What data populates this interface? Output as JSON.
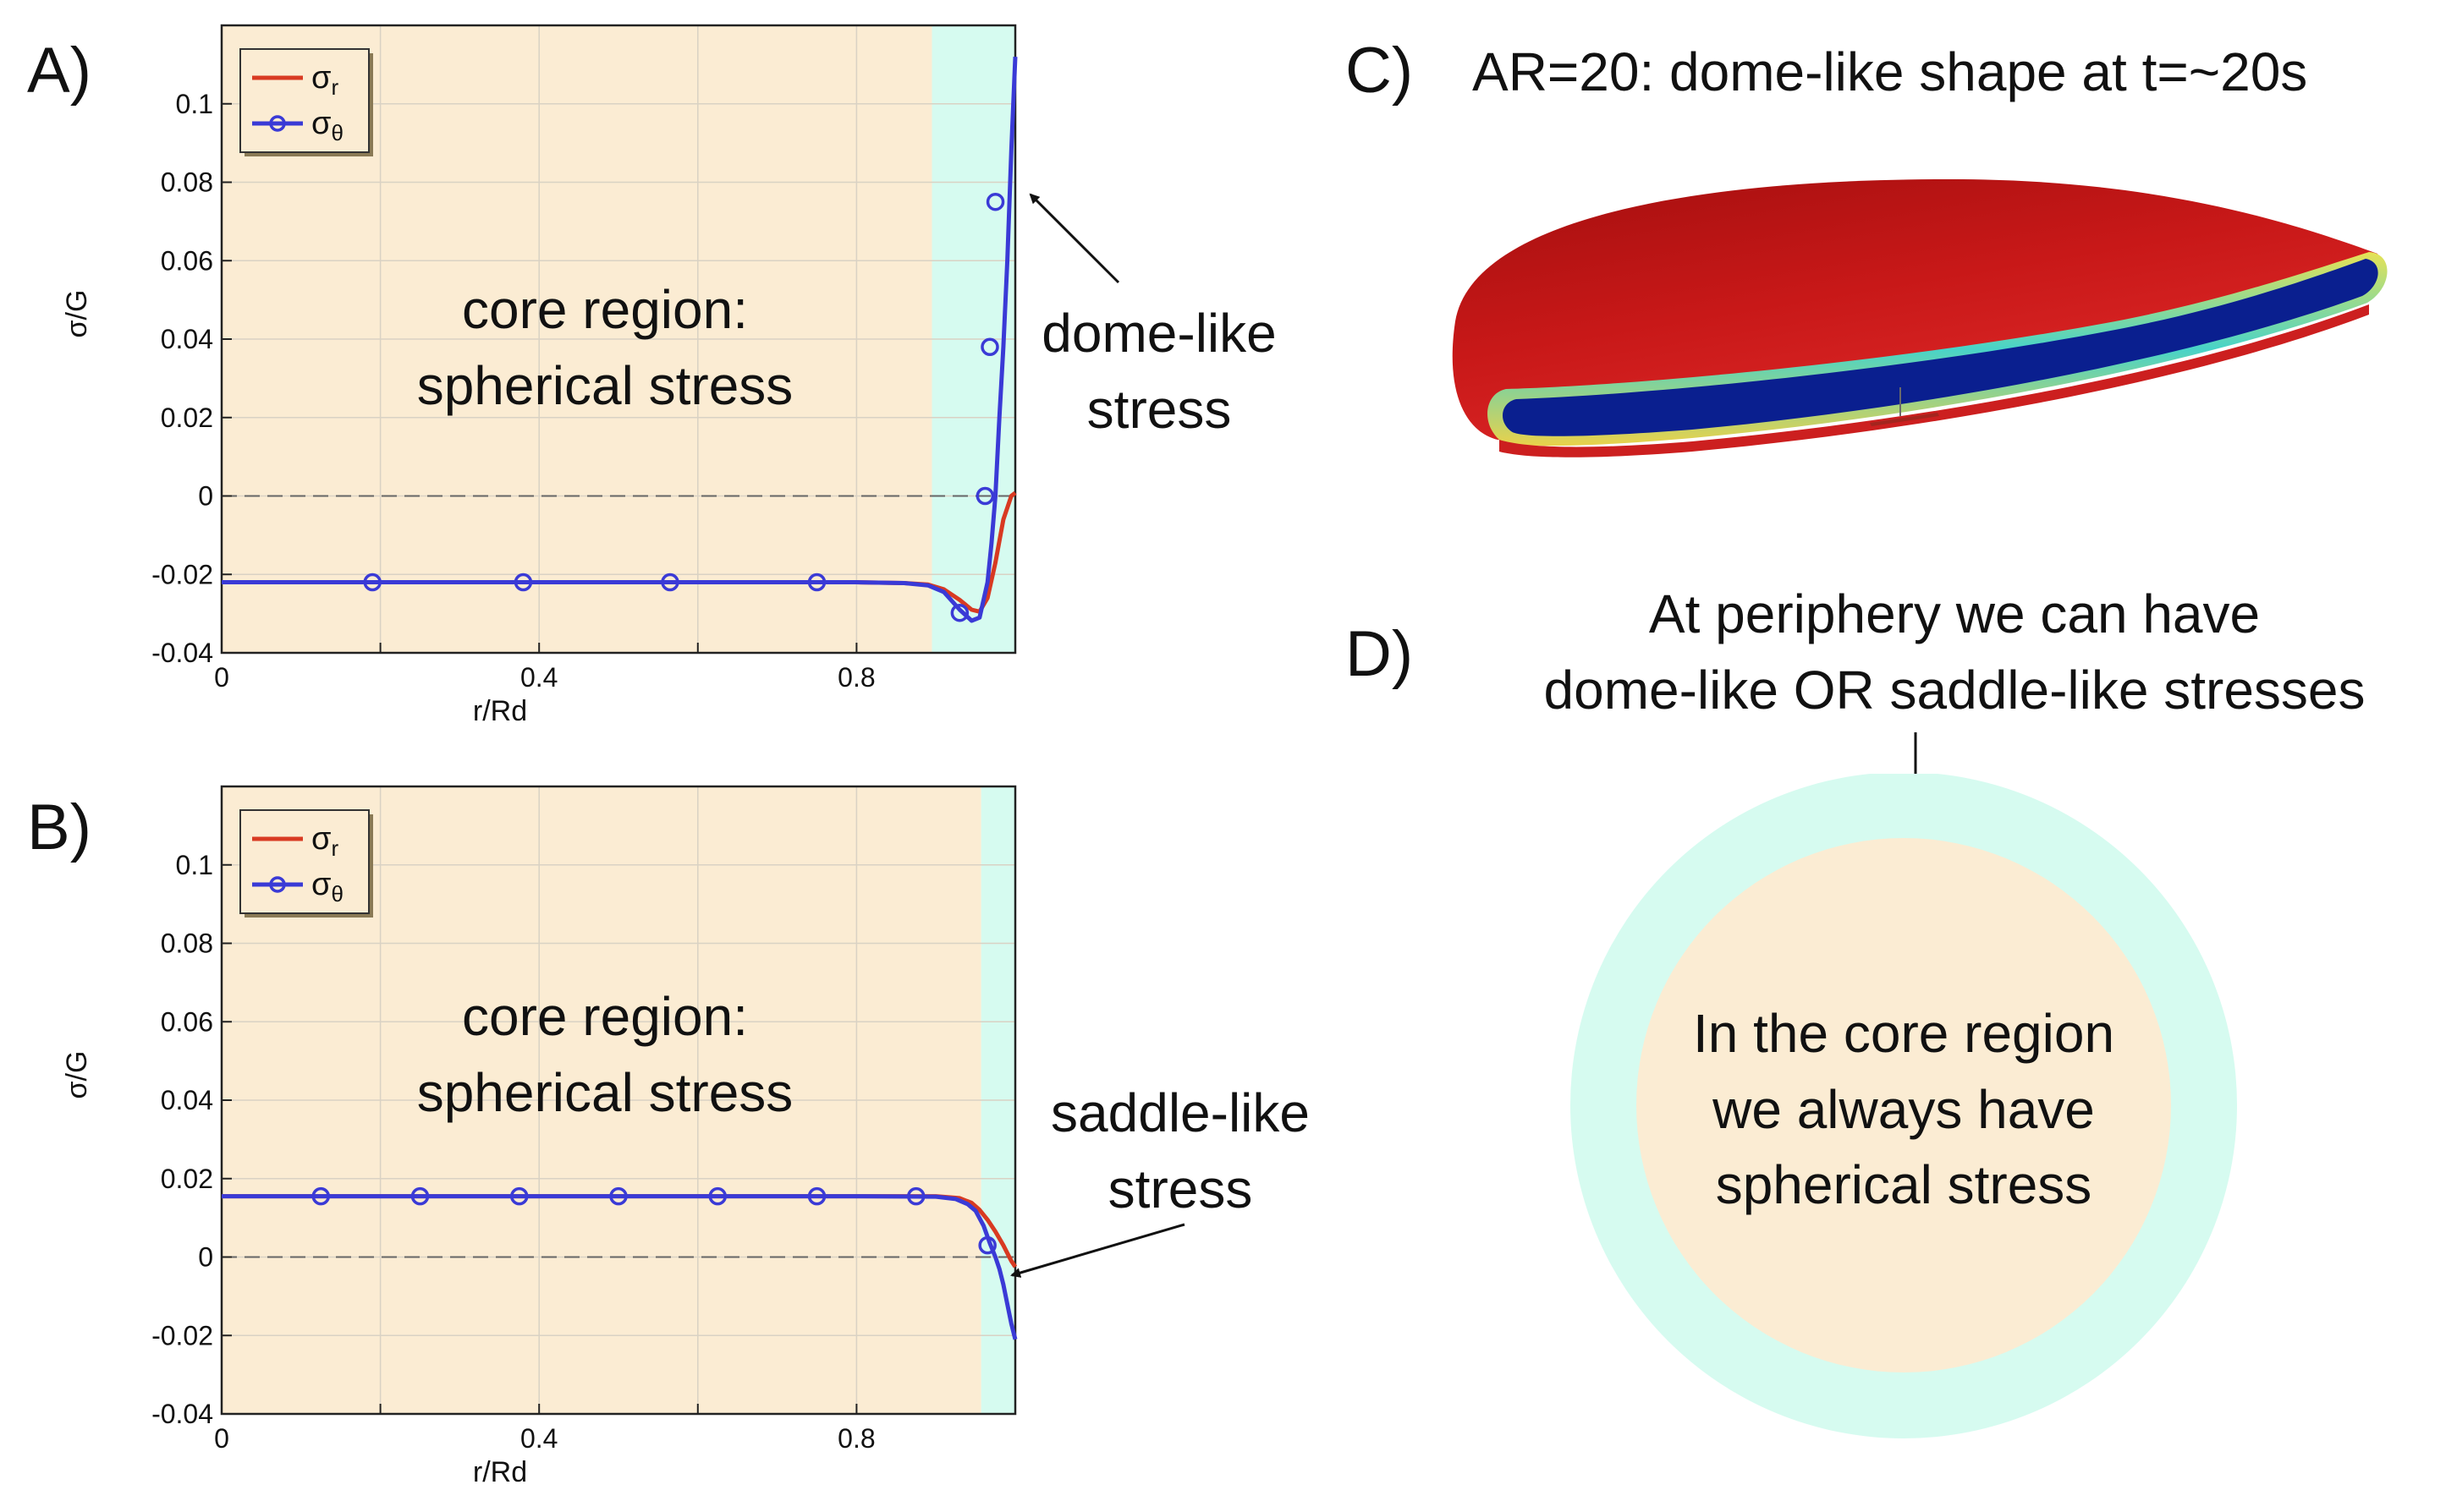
{
  "colors": {
    "core_fill": "#fbecd3",
    "periphery_fill": "#d6fbf0",
    "sigma_r": "#d83a22",
    "sigma_theta": "#3a3ad6",
    "dome_red": "#d42020",
    "dome_blue": "#0a1f8f"
  },
  "panels": {
    "A": {
      "letter": "A)",
      "annotation_line1": "core region:",
      "annotation_line2": "spherical stress",
      "callout_line1": "dome-like",
      "callout_line2": "stress"
    },
    "B": {
      "letter": "B)",
      "annotation_line1": "core region:",
      "annotation_line2": "spherical stress",
      "callout_line1": "saddle-like",
      "callout_line2": "stress"
    },
    "C": {
      "letter": "C)",
      "title": "AR=20: dome-like shape at t=~20s"
    },
    "D": {
      "letter": "D)",
      "caption_line1": "At periphery we can have",
      "caption_line2": "dome-like OR saddle-like stresses",
      "inner_line1": "In the core region",
      "inner_line2": "we always have",
      "inner_line3": "spherical stress"
    }
  },
  "chart_data": [
    {
      "panel": "A",
      "type": "line",
      "xlabel": "r/Rd",
      "ylabel": "σ/G",
      "xlim": [
        0,
        1
      ],
      "ylim": [
        -0.04,
        0.12
      ],
      "xticks": [
        0,
        0.2,
        0.4,
        0.6,
        0.8,
        1.0
      ],
      "xtick_labels": [
        "0",
        "",
        "0.4",
        "",
        "0.8",
        ""
      ],
      "yticks": [
        -0.04,
        -0.02,
        0,
        0.02,
        0.04,
        0.06,
        0.08,
        0.1
      ],
      "ytick_labels": [
        "-0.04",
        "-0.02",
        "0",
        "0.02",
        "0.04",
        "0.06",
        "0.08",
        "0.1"
      ],
      "grid": true,
      "zero_line": true,
      "legend_position": "top-left",
      "core_region_x": [
        0,
        0.895
      ],
      "periphery_region_x": [
        0.895,
        1.0
      ],
      "series": [
        {
          "name": "σ",
          "subscript": "r",
          "color": "#d83a22",
          "markers": false,
          "x": [
            0,
            0.2,
            0.4,
            0.6,
            0.8,
            0.86,
            0.89,
            0.91,
            0.93,
            0.945,
            0.955,
            0.965,
            0.975,
            0.985,
            0.995,
            1.0
          ],
          "y": [
            -0.022,
            -0.022,
            -0.022,
            -0.022,
            -0.022,
            -0.0222,
            -0.0226,
            -0.0238,
            -0.0265,
            -0.029,
            -0.0295,
            -0.026,
            -0.017,
            -0.006,
            0.0,
            0.0008
          ]
        },
        {
          "name": "σ",
          "subscript": "θ",
          "color": "#3a3ad6",
          "markers": true,
          "x": [
            0,
            0.2,
            0.4,
            0.6,
            0.8,
            0.86,
            0.89,
            0.91,
            0.93,
            0.945,
            0.955,
            0.965,
            0.97,
            0.975,
            0.98,
            0.985,
            0.99,
            0.995,
            1.0
          ],
          "y": [
            -0.022,
            -0.022,
            -0.022,
            -0.022,
            -0.022,
            -0.0222,
            -0.0228,
            -0.0245,
            -0.029,
            -0.0318,
            -0.031,
            -0.022,
            -0.012,
            0.0,
            0.02,
            0.038,
            0.06,
            0.088,
            0.112
          ],
          "marker_x": [
            0.19,
            0.38,
            0.565,
            0.75,
            0.93,
            0.962,
            0.968,
            0.975
          ],
          "marker_y": [
            -0.022,
            -0.022,
            -0.022,
            -0.022,
            -0.0298,
            0.0,
            0.038,
            0.075
          ]
        }
      ]
    },
    {
      "panel": "B",
      "type": "line",
      "xlabel": "r/Rd",
      "ylabel": "σ/G",
      "xlim": [
        0,
        1
      ],
      "ylim": [
        -0.04,
        0.12
      ],
      "xticks": [
        0,
        0.2,
        0.4,
        0.6,
        0.8,
        1.0
      ],
      "xtick_labels": [
        "0",
        "",
        "0.4",
        "",
        "0.8",
        ""
      ],
      "yticks": [
        -0.04,
        -0.02,
        0,
        0.02,
        0.04,
        0.06,
        0.08,
        0.1
      ],
      "ytick_labels": [
        "-0.04",
        "-0.02",
        "0",
        "0.02",
        "0.04",
        "0.06",
        "0.08",
        "0.1"
      ],
      "grid": true,
      "zero_line": true,
      "legend_position": "top-left",
      "core_region_x": [
        0,
        0.957
      ],
      "periphery_region_x": [
        0.957,
        1.0
      ],
      "series": [
        {
          "name": "σ",
          "subscript": "r",
          "color": "#d83a22",
          "markers": false,
          "x": [
            0,
            0.2,
            0.4,
            0.6,
            0.8,
            0.9,
            0.93,
            0.945,
            0.955,
            0.965,
            0.975,
            0.985,
            0.995,
            1.0
          ],
          "y": [
            0.0155,
            0.0155,
            0.0155,
            0.0155,
            0.0155,
            0.0155,
            0.015,
            0.0138,
            0.012,
            0.0095,
            0.0065,
            0.003,
            -0.001,
            -0.0025
          ]
        },
        {
          "name": "σ",
          "subscript": "θ",
          "color": "#3a3ad6",
          "markers": true,
          "x": [
            0,
            0.2,
            0.4,
            0.6,
            0.8,
            0.9,
            0.925,
            0.94,
            0.95,
            0.96,
            0.968,
            0.975,
            0.98,
            0.985,
            0.99,
            0.995,
            1.0
          ],
          "y": [
            0.0155,
            0.0155,
            0.0155,
            0.0155,
            0.0155,
            0.0154,
            0.0148,
            0.0135,
            0.0118,
            0.008,
            0.0035,
            0.0,
            -0.003,
            -0.007,
            -0.012,
            -0.017,
            -0.021
          ],
          "marker_x": [
            0.125,
            0.25,
            0.375,
            0.5,
            0.625,
            0.75,
            0.875,
            0.965
          ],
          "marker_y": [
            0.0155,
            0.0155,
            0.0155,
            0.0155,
            0.0155,
            0.0155,
            0.0155,
            0.003
          ]
        }
      ]
    }
  ]
}
